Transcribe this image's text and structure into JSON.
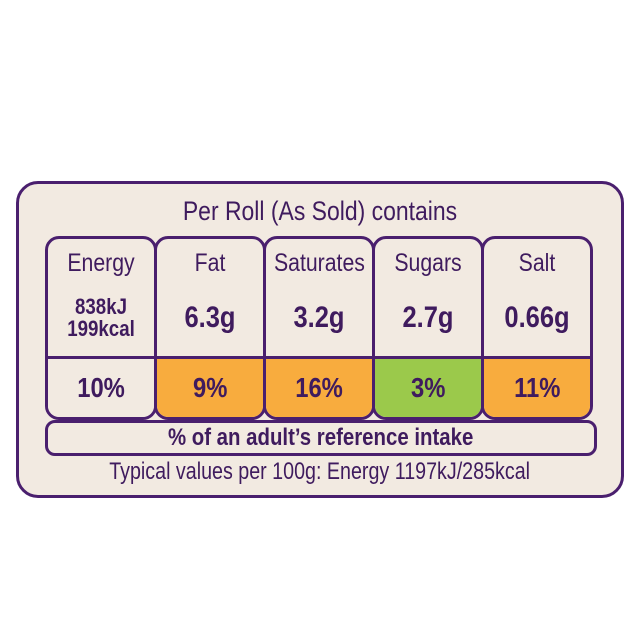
{
  "title": "Per Roll (As Sold) contains",
  "colors": {
    "outline": "#4a1f6e",
    "background": "#f2eae1",
    "amber": "#f8ac3e",
    "green": "#9bc94b"
  },
  "nutrients": [
    {
      "name": "Energy",
      "value": "838kJ",
      "value2": "199kcal",
      "percent": "10%",
      "color": "#f2eae1"
    },
    {
      "name": "Fat",
      "value": "6.3g",
      "percent": "9%",
      "color": "#f8ac3e"
    },
    {
      "name": "Saturates",
      "value": "3.2g",
      "percent": "16%",
      "color": "#f8ac3e"
    },
    {
      "name": "Sugars",
      "value": "2.7g",
      "percent": "3%",
      "color": "#9bc94b"
    },
    {
      "name": "Salt",
      "value": "0.66g",
      "percent": "11%",
      "color": "#f8ac3e"
    }
  ],
  "reference_intake": "% of an adult’s reference intake",
  "typical_values": "Typical values per 100g: Energy 1197kJ/285kcal"
}
